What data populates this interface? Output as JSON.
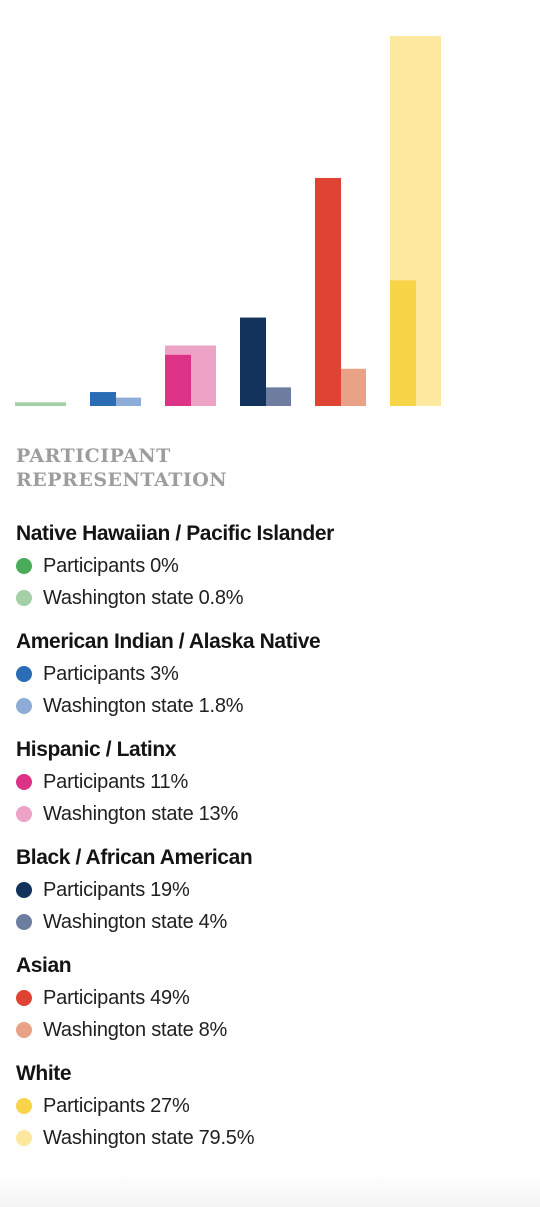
{
  "heading_line1": "PARTICIPANT",
  "heading_line2": "REPRESENTATION",
  "chart_data": {
    "type": "bar",
    "categories": [
      "Native Hawaiian / Pacific Islander",
      "American Indian / Alaska Native",
      "Hispanic / Latinx",
      "Black / African American",
      "Asian",
      "White"
    ],
    "series": [
      {
        "name": "Participants",
        "values": [
          0,
          3,
          11,
          19,
          49,
          27
        ]
      },
      {
        "name": "Washington state",
        "values": [
          0.8,
          1.8,
          13,
          4,
          8,
          79.5
        ]
      }
    ],
    "ylim": [
      0,
      79.5
    ],
    "grid": false,
    "legend_position": "bottom"
  },
  "groups": [
    {
      "label": "Native Hawaiian / Pacific Islander",
      "participants": {
        "name": "Participants",
        "value": "0%",
        "color": "#4aab5a"
      },
      "state": {
        "name": "Washington state",
        "value": "0.8%",
        "color": "#a4d0a5"
      }
    },
    {
      "label": "American Indian / Alaska Native",
      "participants": {
        "name": "Participants",
        "value": "3%",
        "color": "#2b6db5"
      },
      "state": {
        "name": "Washington state",
        "value": "1.8%",
        "color": "#8eacd8"
      }
    },
    {
      "label": "Hispanic / Latinx",
      "participants": {
        "name": "Participants",
        "value": "11%",
        "color": "#dd3386"
      },
      "state": {
        "name": "Washington state",
        "value": "13%",
        "color": "#eda3c6"
      }
    },
    {
      "label": "Black / African American",
      "participants": {
        "name": "Participants",
        "value": "19%",
        "color": "#12325c"
      },
      "state": {
        "name": "Washington state",
        "value": "4%",
        "color": "#6c7d9f"
      }
    },
    {
      "label": "Asian",
      "participants": {
        "name": "Participants",
        "value": "49%",
        "color": "#de4333"
      },
      "state": {
        "name": "Washington state",
        "value": "8%",
        "color": "#eaa286"
      }
    },
    {
      "label": "White",
      "participants": {
        "name": "Participants",
        "value": "27%",
        "color": "#f8d548"
      },
      "state": {
        "name": "Washington state",
        "value": "79.5%",
        "color": "#fce89f"
      }
    }
  ]
}
